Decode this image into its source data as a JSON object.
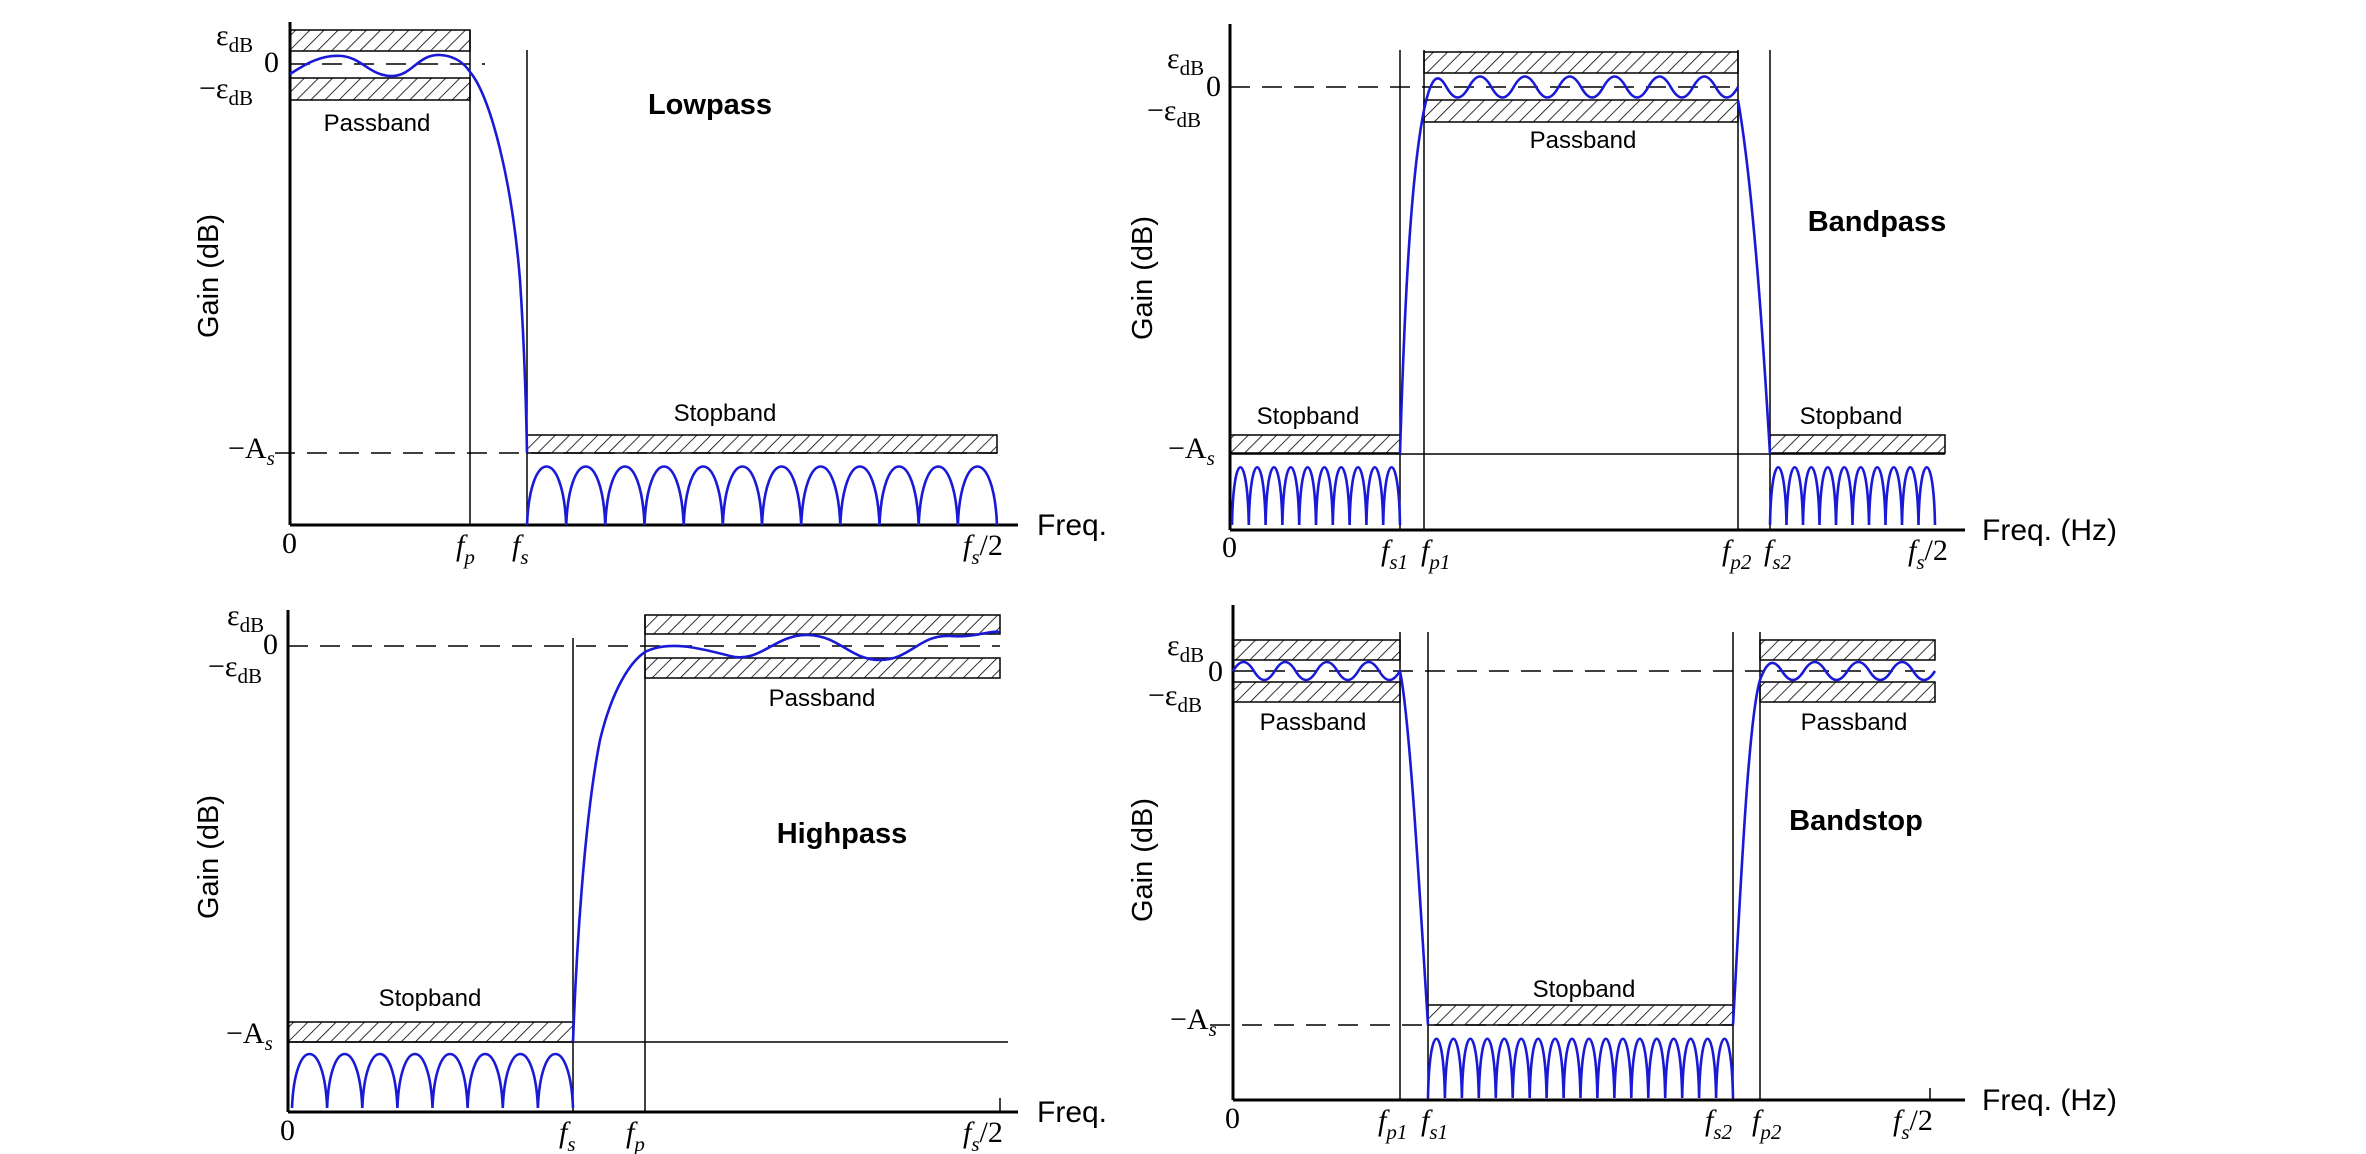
{
  "panels": {
    "lowpass": {
      "title": "Lowpass",
      "y_label": "Gain (dB)",
      "x_label": "Freq.",
      "passband_label": "Passband",
      "stopband_label": "Stopband",
      "y_ticks": {
        "eps_plus": "ε",
        "eps_minus": "−ε",
        "eps_sub": "dB",
        "zero": "0",
        "minus_as": "−A",
        "as_sub": "s"
      },
      "x_ticks": {
        "origin": "0",
        "f": "f",
        "p": "p",
        "s": "s",
        "half": "/2"
      }
    },
    "bandpass": {
      "title": "Bandpass",
      "y_label": "Gain (dB)",
      "x_label": "Freq. (Hz)",
      "passband_label": "Passband",
      "stopband_left_label": "Stopband",
      "stopband_right_label": "Stopband",
      "y_ticks": {
        "eps_plus": "ε",
        "eps_minus": "−ε",
        "eps_sub": "dB",
        "zero": "0",
        "minus_as": "−A",
        "as_sub": "s"
      },
      "x_ticks": {
        "origin": "0",
        "f": "f",
        "s1": "s1",
        "p1": "p1",
        "p2": "p2",
        "s2": "s2",
        "s": "s",
        "half": "/2"
      }
    },
    "highpass": {
      "title": "Highpass",
      "y_label": "Gain (dB)",
      "x_label": "Freq.",
      "passband_label": "Passband",
      "stopband_label": "Stopband",
      "y_ticks": {
        "eps_plus": "ε",
        "eps_minus": "−ε",
        "eps_sub": "dB",
        "zero": "0",
        "minus_as": "−A",
        "as_sub": "s"
      },
      "x_ticks": {
        "origin": "0",
        "f": "f",
        "s": "s",
        "p": "p",
        "half": "/2"
      }
    },
    "bandstop": {
      "title": "Bandstop",
      "y_label": "Gain (dB)",
      "x_label": "Freq. (Hz)",
      "passband_left_label": "Passband",
      "passband_right_label": "Passband",
      "stopband_label": "Stopband",
      "y_ticks": {
        "eps_plus": "ε",
        "eps_minus": "−ε",
        "eps_sub": "dB",
        "zero": "0",
        "minus_as": "−A",
        "as_sub": "s"
      },
      "x_ticks": {
        "origin": "0",
        "f": "f",
        "p1": "p1",
        "s1": "s1",
        "s2": "s2",
        "p2": "p2",
        "s": "s",
        "half": "/2"
      }
    }
  },
  "colors": {
    "response_curve": "#1a1ad6",
    "axes": "#000000"
  }
}
